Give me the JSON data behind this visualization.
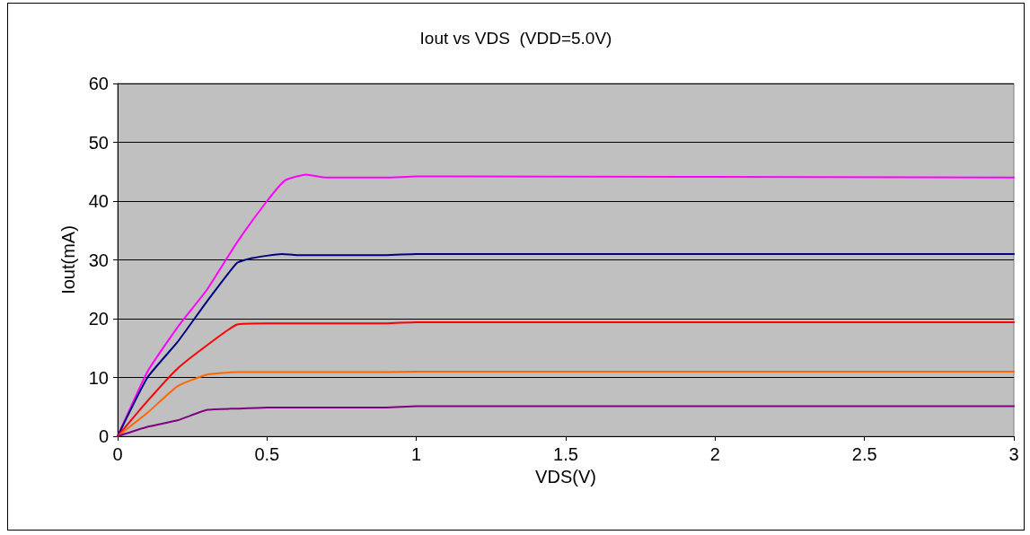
{
  "chart_data": {
    "type": "line",
    "title": "Iout vs VDS  (VDD=5.0V)",
    "xlabel": "VDS(V)",
    "ylabel": "Iout(mA)",
    "xlim": [
      0,
      3
    ],
    "xticks": [
      0,
      0.5,
      1,
      1.5,
      2,
      2.5,
      3
    ],
    "ylim": [
      0,
      60
    ],
    "yticks": [
      0,
      10,
      20,
      30,
      40,
      50,
      60
    ],
    "grid": "y",
    "marker": "none",
    "line_style": "solid",
    "series": [
      {
        "color": "#ff00ff",
        "x": [
          0,
          0.1,
          0.2,
          0.3,
          0.4,
          0.5,
          0.56,
          0.63,
          0.7,
          0.9,
          1,
          3
        ],
        "values": [
          0,
          11,
          18.5,
          25,
          33,
          40,
          43.5,
          44.5,
          44,
          44,
          44.2,
          44
        ]
      },
      {
        "color": "#000080",
        "x": [
          0,
          0.1,
          0.2,
          0.3,
          0.4,
          0.45,
          0.55,
          0.6,
          0.9,
          1,
          3
        ],
        "values": [
          0,
          10,
          16,
          23,
          29.5,
          30.3,
          31,
          30.8,
          30.8,
          31,
          31
        ]
      },
      {
        "color": "#ff0000",
        "x": [
          0,
          0.1,
          0.2,
          0.3,
          0.4,
          0.5,
          0.9,
          1,
          3
        ],
        "values": [
          0,
          6,
          11.5,
          15.5,
          19,
          19.2,
          19.2,
          19.4,
          19.4
        ]
      },
      {
        "color": "#ff6600",
        "x": [
          0,
          0.1,
          0.2,
          0.3,
          0.4,
          0.9,
          1,
          3
        ],
        "values": [
          0,
          4,
          8.5,
          10.5,
          10.9,
          10.9,
          11,
          11
        ]
      },
      {
        "color": "#800080",
        "x": [
          0,
          0.1,
          0.2,
          0.3,
          0.4,
          0.5,
          0.9,
          1,
          3
        ],
        "values": [
          0,
          1.6,
          2.7,
          4.5,
          4.7,
          4.9,
          4.9,
          5.1,
          5.1
        ]
      }
    ]
  }
}
